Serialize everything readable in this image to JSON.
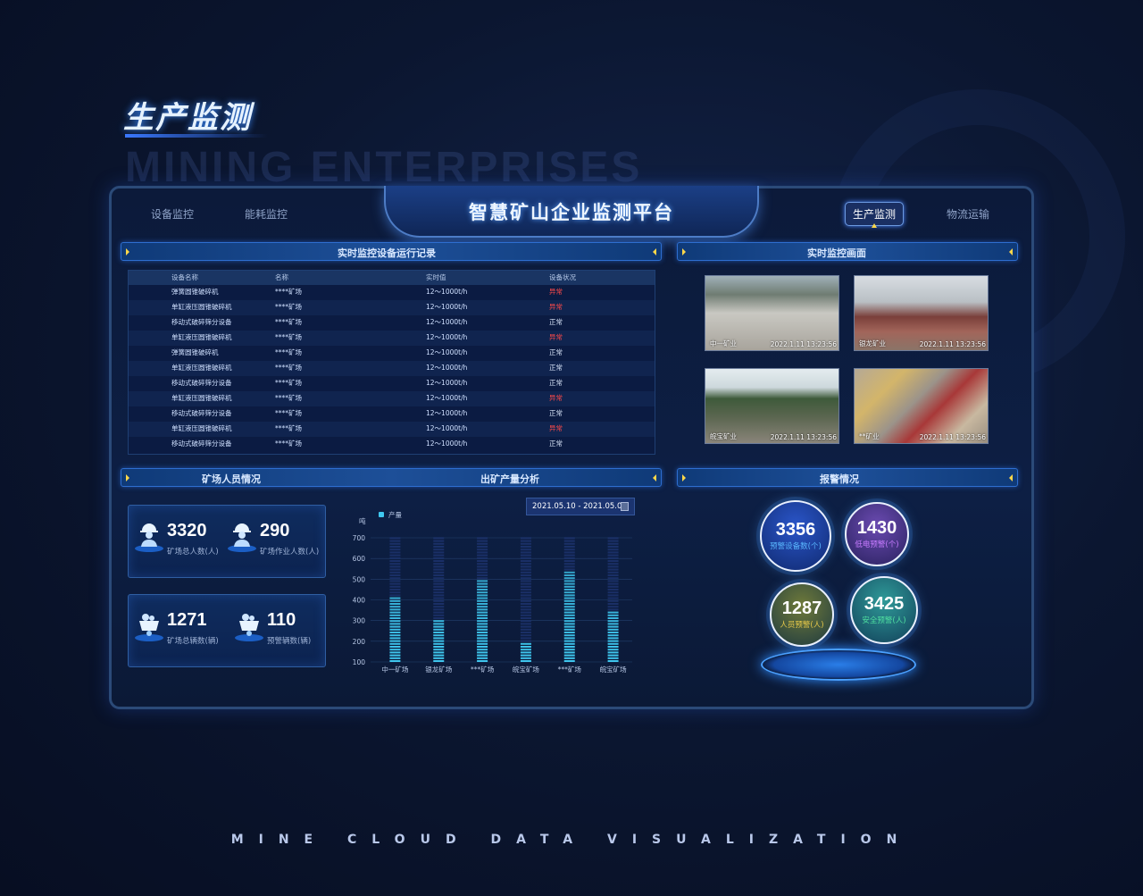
{
  "page_title": "生产监测",
  "watermark": "MINING ENTERPRISES",
  "footer": "MINE CLOUD DATA VISUALIZATION",
  "header": {
    "title": "智慧矿山企业监测平台",
    "nav_left": [
      "设备监控",
      "能耗监控"
    ],
    "nav_right": [
      {
        "label": "生产监测",
        "active": true
      },
      {
        "label": "物流运输",
        "active": false
      }
    ]
  },
  "records": {
    "title": "实时监控设备运行记录",
    "columns": [
      "设备名称",
      "名称",
      "实时值",
      "设备状况"
    ],
    "rows": [
      [
        "弹簧圆锥破碎机",
        "****矿场",
        "12～1000t/h",
        "异常"
      ],
      [
        "单缸液压圆锥破碎机",
        "****矿场",
        "12～1000t/h",
        "异常"
      ],
      [
        "移动式破碎筛分设备",
        "****矿场",
        "12～1000t/h",
        "正常"
      ],
      [
        "单缸液压圆锥破碎机",
        "****矿场",
        "12～1000t/h",
        "异常"
      ],
      [
        "弹簧圆锥破碎机",
        "****矿场",
        "12～1000t/h",
        "正常"
      ],
      [
        "单缸液压圆锥破碎机",
        "****矿场",
        "12～1000t/h",
        "正常"
      ],
      [
        "移动式破碎筛分设备",
        "****矿场",
        "12～1000t/h",
        "正常"
      ],
      [
        "单缸液压圆锥破碎机",
        "****矿场",
        "12～1000t/h",
        "异常"
      ],
      [
        "移动式破碎筛分设备",
        "****矿场",
        "12～1000t/h",
        "正常"
      ],
      [
        "单缸液压圆锥破碎机",
        "****矿场",
        "12～1000t/h",
        "异常"
      ],
      [
        "移动式破碎筛分设备",
        "****矿场",
        "12～1000t/h",
        "正常"
      ]
    ],
    "status_colors": {
      "异常": "#ff4a4a",
      "正常": "#d8e4f8"
    }
  },
  "monitor": {
    "title": "实时监控画面",
    "feeds": [
      {
        "name": "中一矿业",
        "time": "2022.1.11 13:23:56"
      },
      {
        "name": "银龙矿业",
        "time": "2022.1.11 13:23:56"
      },
      {
        "name": "皖宝矿业",
        "time": "2022.1.11 13:23:56"
      },
      {
        "name": "**矿业",
        "time": "2022.1.11 13:23:56"
      }
    ]
  },
  "personnel": {
    "title": "矿场人员情况",
    "stats": [
      {
        "value": "3320",
        "label": "矿场总人数(人)",
        "icon": "worker-icon"
      },
      {
        "value": "290",
        "label": "矿场作业人数(人)",
        "icon": "worker-icon"
      },
      {
        "value": "1271",
        "label": "矿场总辆数(辆)",
        "icon": "mine-cart-icon"
      },
      {
        "value": "110",
        "label": "预警辆数(辆)",
        "icon": "mine-cart-icon"
      }
    ]
  },
  "output": {
    "title": "出矿产量分析",
    "date_range": "2021.05.10 - 2021.05.03"
  },
  "chart_data": {
    "type": "bar",
    "ylabel": "吨",
    "legend": [
      "产量"
    ],
    "legend_placement": "top-left",
    "categories": [
      "中一矿场",
      "银龙矿场",
      "***矿场",
      "皖宝矿场",
      "***矿场",
      "皖宝矿场"
    ],
    "series": [
      {
        "name": "产量",
        "values": [
          410,
          295,
          490,
          195,
          535,
          335
        ]
      }
    ],
    "yticks": [
      100,
      200,
      300,
      400,
      500,
      600,
      700
    ],
    "ylim": [
      100,
      700
    ],
    "grid": true,
    "bar_color": "#3fc8f0"
  },
  "alarms": {
    "title": "报警情况",
    "items": [
      {
        "value": "3356",
        "label": "预警设备数(个)",
        "color": "#5ab8ff"
      },
      {
        "value": "1430",
        "label": "低电预警(个)",
        "color": "#c77bff"
      },
      {
        "value": "1287",
        "label": "人员预警(人)",
        "color": "#e8c94a"
      },
      {
        "value": "3425",
        "label": "安全预警(人)",
        "color": "#4fe0a0"
      }
    ]
  }
}
